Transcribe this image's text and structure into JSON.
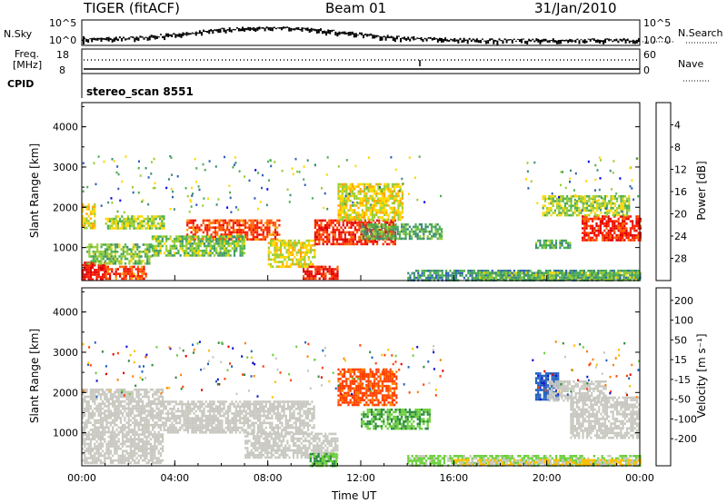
{
  "header": {
    "left_title": "TIGER (fitACF)",
    "center_title": "Beam 01",
    "date": "31/Jan/2010"
  },
  "strip1": {
    "left_label": "N.Sky",
    "right_label": "N.Search",
    "left_ticks": [
      "10^5",
      "10^0"
    ],
    "right_ticks": [
      "10^5",
      "10^0"
    ]
  },
  "strip2": {
    "left_label_top": "Freq.",
    "left_label_bottom": "[MHz]",
    "right_label": "Nave",
    "left_ticks": [
      "18",
      "8"
    ],
    "right_ticks": [
      "60",
      "0"
    ]
  },
  "cpid": {
    "label": "CPID",
    "value": "stereo_scan 8551"
  },
  "chart_data": [
    {
      "type": "heatmap",
      "name": "Power",
      "ylabel": "Slant Range [km]",
      "ylim": [
        180,
        4600
      ],
      "yticks": [
        "1000",
        "2000",
        "3000",
        "4000"
      ],
      "yticks_values": [
        1000,
        2000,
        3000,
        4000
      ],
      "xlim_hours": [
        0,
        24
      ],
      "colorbar": {
        "label": "Power [dB]",
        "ticks": [
          "4",
          "8",
          "12",
          "16",
          "20",
          "24",
          "28"
        ],
        "range": [
          0,
          30
        ],
        "colors": [
          "#0000f0",
          "#2d5fb4",
          "#3c8c78",
          "#4caf50",
          "#9acd32",
          "#ffd700",
          "#ffa500",
          "#ff6000",
          "#ff2000",
          "#e00000"
        ]
      },
      "regions": [
        {
          "t0": 0.0,
          "t1": 1.0,
          "r0": 200,
          "r1": 650,
          "level": 28
        },
        {
          "t0": 1.0,
          "t1": 2.8,
          "r0": 200,
          "r1": 550,
          "level": 24
        },
        {
          "t0": 0.2,
          "t1": 3.0,
          "r0": 600,
          "r1": 1100,
          "level": 12
        },
        {
          "t0": 0.0,
          "t1": 0.6,
          "r0": 1500,
          "r1": 2100,
          "level": 16
        },
        {
          "t0": 1.0,
          "t1": 3.5,
          "r0": 1500,
          "r1": 1800,
          "level": 14
        },
        {
          "t0": 4.5,
          "t1": 8.5,
          "r0": 1200,
          "r1": 1700,
          "level": 24
        },
        {
          "t0": 3.0,
          "t1": 7.0,
          "r0": 800,
          "r1": 1300,
          "level": 12
        },
        {
          "t0": 8.0,
          "t1": 10.0,
          "r0": 500,
          "r1": 1200,
          "level": 16
        },
        {
          "t0": 9.5,
          "t1": 11.0,
          "r0": 200,
          "r1": 550,
          "level": 26
        },
        {
          "t0": 10.0,
          "t1": 13.5,
          "r0": 1100,
          "r1": 1700,
          "level": 26
        },
        {
          "t0": 11.0,
          "t1": 13.8,
          "r0": 1700,
          "r1": 2600,
          "level": 16
        },
        {
          "t0": 12.0,
          "t1": 15.5,
          "r0": 1200,
          "r1": 1600,
          "level": 10
        },
        {
          "t0": 14.0,
          "t1": 24.0,
          "r0": 200,
          "r1": 450,
          "level": 8
        },
        {
          "t0": 17.0,
          "t1": 24.0,
          "r0": 200,
          "r1": 400,
          "level": 12
        },
        {
          "t0": 21.5,
          "t1": 24.0,
          "r0": 1200,
          "r1": 1800,
          "level": 26
        },
        {
          "t0": 19.8,
          "t1": 23.5,
          "r0": 1800,
          "r1": 2300,
          "level": 14
        },
        {
          "t0": 19.5,
          "t1": 21.0,
          "r0": 1000,
          "r1": 1200,
          "level": 10
        }
      ]
    },
    {
      "type": "heatmap",
      "name": "Velocity",
      "ylabel": "Slant Range [km]",
      "xlabel": "Time UT",
      "ylim": [
        180,
        4600
      ],
      "yticks": [
        "1000",
        "2000",
        "3000",
        "4000"
      ],
      "yticks_values": [
        1000,
        2000,
        3000,
        4000
      ],
      "xlim_hours": [
        0,
        24
      ],
      "xticks": [
        "00:00",
        "04:00",
        "08:00",
        "12:00",
        "16:00",
        "20:00",
        "00:00"
      ],
      "xticks_values": [
        0,
        4,
        8,
        12,
        16,
        20,
        24
      ],
      "colorbar": {
        "label": "Velocity [m s⁻¹]",
        "ticks": [
          "200",
          "100",
          "50",
          "15",
          "-15",
          "-50",
          "-100",
          "-200"
        ],
        "range": [
          -250,
          250
        ],
        "colors": [
          "#1010d0",
          "#2060c0",
          "#2b8a3e",
          "#6bcf3a",
          "#c8c8c0",
          "#ffc000",
          "#ff8000",
          "#ff4000",
          "#e00000"
        ]
      },
      "regions": [
        {
          "t0": 0.0,
          "t1": 3.5,
          "r0": 250,
          "r1": 2100,
          "level": 0
        },
        {
          "t0": 3.5,
          "t1": 10.0,
          "r0": 1000,
          "r1": 1800,
          "level": 0
        },
        {
          "t0": 7.0,
          "t1": 11.0,
          "r0": 400,
          "r1": 1000,
          "level": 0
        },
        {
          "t0": 9.8,
          "t1": 11.0,
          "r0": 200,
          "r1": 500,
          "level": -80
        },
        {
          "t0": 11.0,
          "t1": 13.5,
          "r0": 1700,
          "r1": 2600,
          "level": 150
        },
        {
          "t0": 12.0,
          "t1": 15.0,
          "r0": 1100,
          "r1": 1600,
          "level": -80
        },
        {
          "t0": 14.0,
          "t1": 24.0,
          "r0": 200,
          "r1": 450,
          "level": -40
        },
        {
          "t0": 16.0,
          "t1": 24.0,
          "r0": 200,
          "r1": 350,
          "level": 30
        },
        {
          "t0": 21.0,
          "t1": 24.0,
          "r0": 900,
          "r1": 1900,
          "level": 0
        },
        {
          "t0": 19.5,
          "t1": 20.5,
          "r0": 1800,
          "r1": 2500,
          "level": -180
        },
        {
          "t0": 20.0,
          "t1": 22.5,
          "r0": 1800,
          "r1": 2300,
          "level": 0
        }
      ]
    }
  ]
}
